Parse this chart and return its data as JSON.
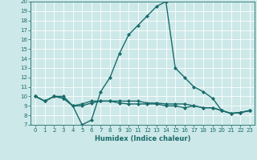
{
  "xlabel": "Humidex (Indice chaleur)",
  "background_color": "#cde8e8",
  "grid_color": "#ffffff",
  "line_color": "#1a6b6b",
  "xlim": [
    -0.5,
    23.5
  ],
  "ylim": [
    7,
    20
  ],
  "yticks": [
    7,
    8,
    9,
    10,
    11,
    12,
    13,
    14,
    15,
    16,
    17,
    18,
    19,
    20
  ],
  "xticks": [
    0,
    1,
    2,
    3,
    4,
    5,
    6,
    7,
    8,
    9,
    10,
    11,
    12,
    13,
    14,
    15,
    16,
    17,
    18,
    19,
    20,
    21,
    22,
    23
  ],
  "series": [
    {
      "x": [
        0,
        1,
        2,
        3,
        4,
        5,
        6,
        7,
        8,
        9,
        10,
        11,
        12,
        13,
        14,
        15,
        16,
        17,
        18,
        19,
        20,
        21,
        22,
        23
      ],
      "y": [
        10,
        9.5,
        10,
        10,
        9,
        7,
        7.5,
        10.5,
        12,
        14.5,
        16.5,
        17.5,
        18.5,
        19.5,
        20,
        13,
        12,
        11,
        10.5,
        9.8,
        8.5,
        8.2,
        8.3,
        8.5
      ],
      "marker": "D",
      "markersize": 2.0,
      "linewidth": 1.0
    },
    {
      "x": [
        0,
        1,
        2,
        3,
        4,
        5,
        6,
        7,
        8,
        9,
        10,
        11,
        12,
        13,
        14,
        15,
        16,
        17,
        18,
        19,
        20,
        21,
        22,
        23
      ],
      "y": [
        10,
        9.5,
        10,
        9.8,
        9,
        9.2,
        9.5,
        9.5,
        9.5,
        9.5,
        9.5,
        9.5,
        9.3,
        9.3,
        9.2,
        9.2,
        9.2,
        9.0,
        8.8,
        8.8,
        8.5,
        8.2,
        8.3,
        8.5
      ],
      "marker": "D",
      "markersize": 2.0,
      "linewidth": 1.0
    },
    {
      "x": [
        0,
        1,
        2,
        3,
        4,
        5,
        6,
        7,
        8,
        9,
        10,
        11,
        12,
        13,
        14,
        15,
        16,
        17,
        18,
        19,
        20,
        21,
        22,
        23
      ],
      "y": [
        10,
        9.5,
        10,
        9.8,
        9,
        9.0,
        9.3,
        9.5,
        9.5,
        9.3,
        9.2,
        9.2,
        9.2,
        9.2,
        9.0,
        9.0,
        8.8,
        9.0,
        8.8,
        8.8,
        8.5,
        8.2,
        8.3,
        8.5
      ],
      "marker": "D",
      "markersize": 2.0,
      "linewidth": 1.0
    }
  ]
}
